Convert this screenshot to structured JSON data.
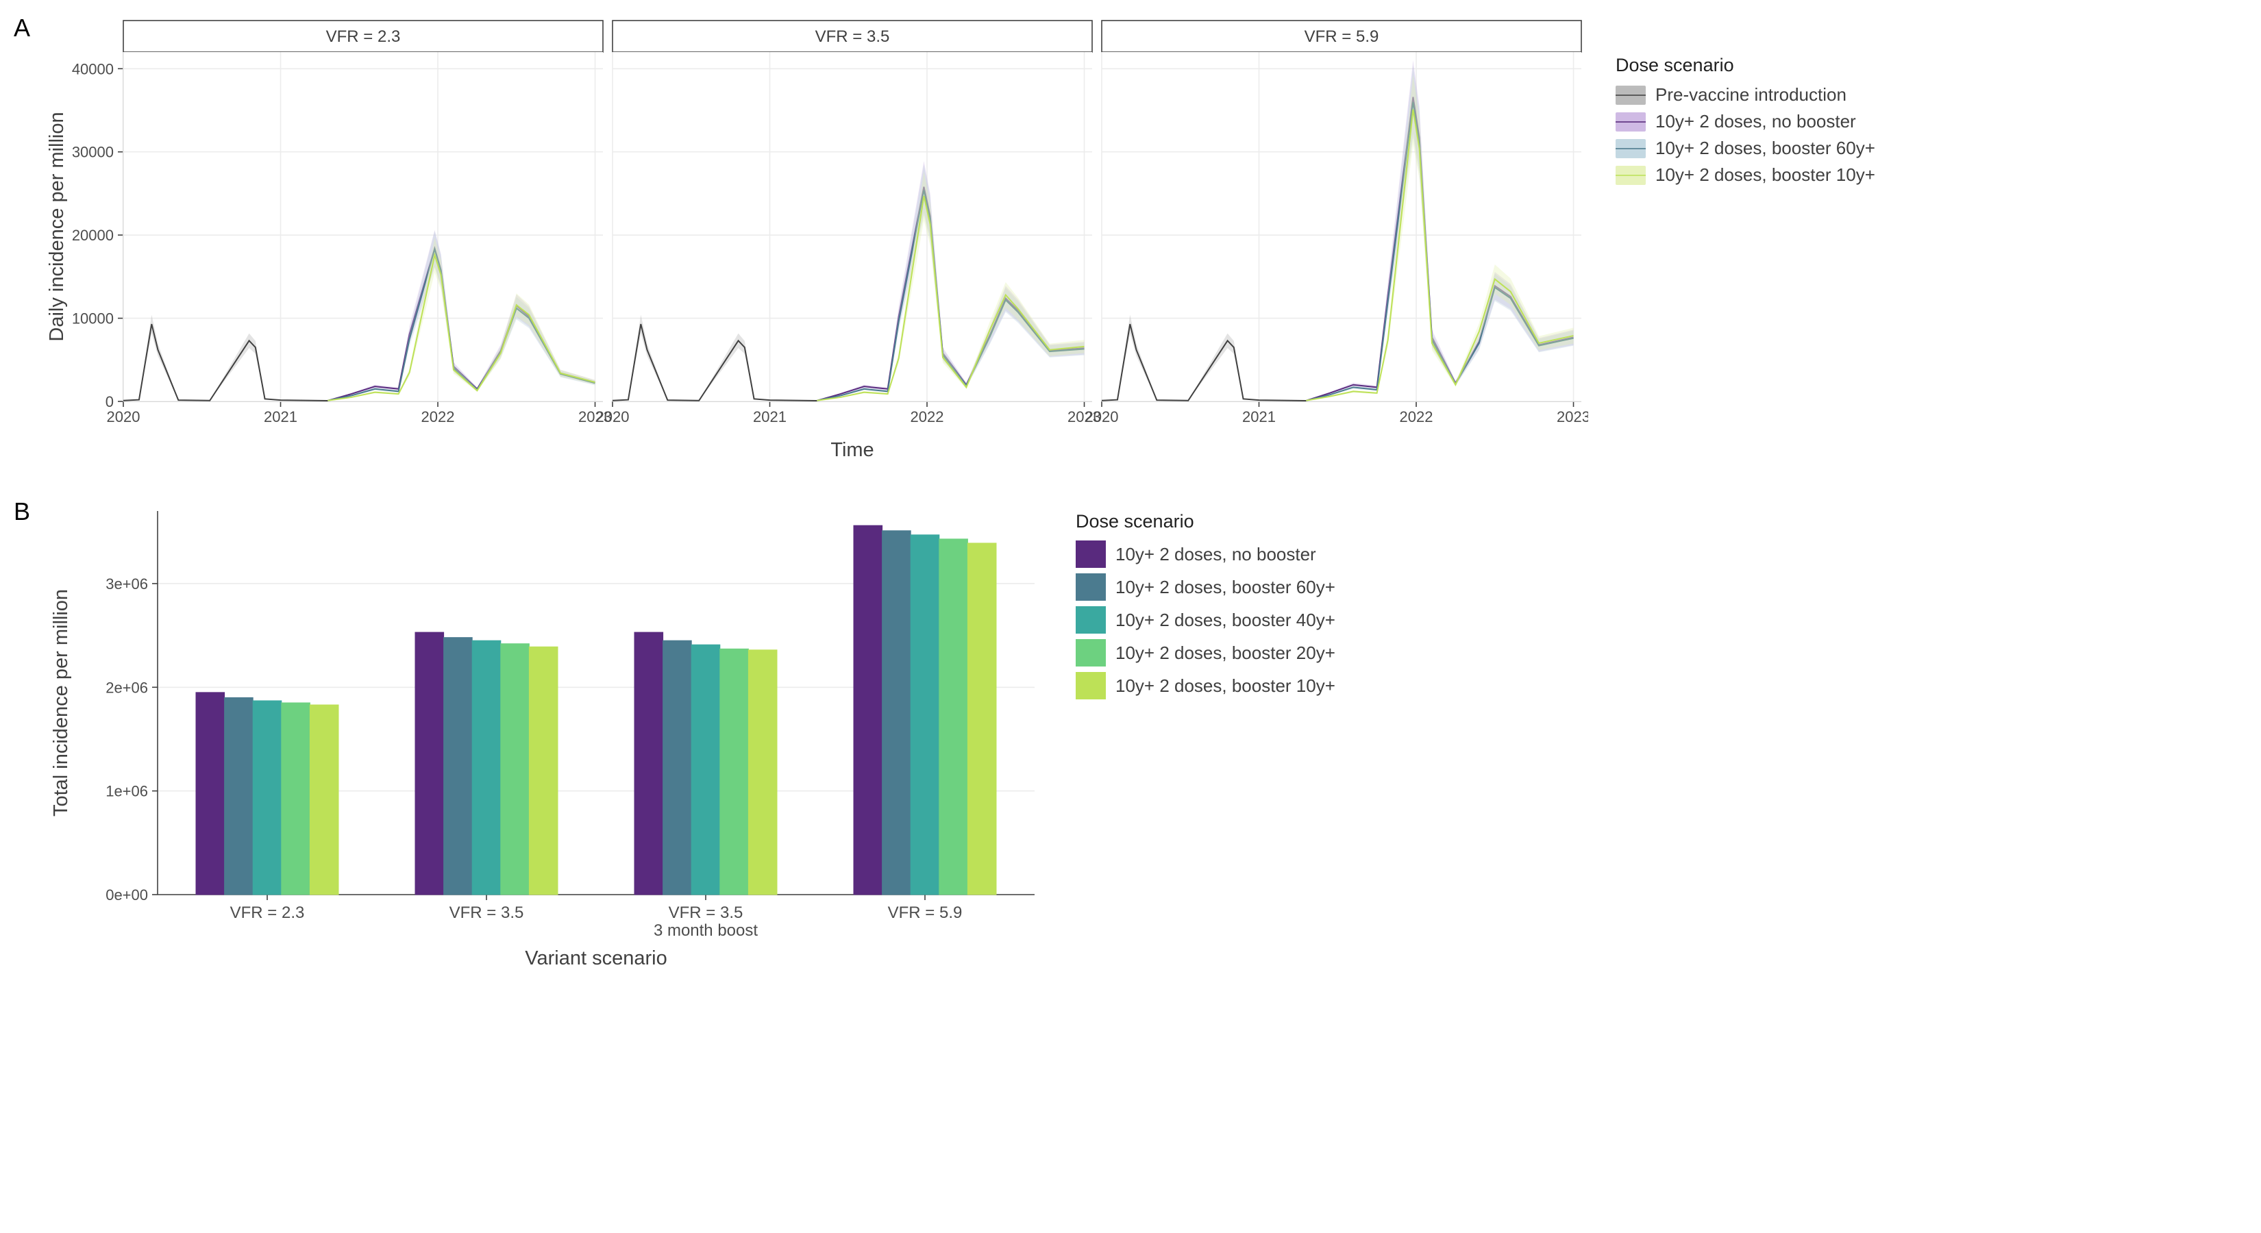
{
  "palette": {
    "prevax": "#404040",
    "prevax_fill": "#b0b0b0",
    "nobooster": "#592a7e",
    "nobooster_fill": "#c7aee0",
    "boost60": "#4b7b8f",
    "boost60_fill": "#b9d2dd",
    "boost40": "#3aa9a0",
    "boost20": "#6dd180",
    "boost10": "#bde157",
    "boost10_fill": "#e3f0b0",
    "grid": "#ececec",
    "axis": "#404040",
    "bg": "#ffffff"
  },
  "panelA": {
    "label": "A",
    "ylabel": "Daily incidence per million",
    "xlabel": "Time",
    "yticks": [
      0,
      10000,
      20000,
      30000,
      40000
    ],
    "xticks": [
      2020,
      2021,
      2022,
      2023
    ],
    "ylim": [
      0,
      42000
    ],
    "xlim": [
      2020,
      2023.05
    ],
    "axis_fontsize": 22,
    "title_fontsize": 29,
    "facets": [
      {
        "title": "VFR = 2.3",
        "series": {
          "prevax": [
            [
              2020.0,
              100
            ],
            [
              2020.1,
              200
            ],
            [
              2020.18,
              9300
            ],
            [
              2020.22,
              6200
            ],
            [
              2020.35,
              150
            ],
            [
              2020.55,
              100
            ],
            [
              2020.8,
              7300
            ],
            [
              2020.84,
              6500
            ],
            [
              2020.9,
              300
            ],
            [
              2021.0,
              150
            ],
            [
              2021.3,
              80
            ]
          ],
          "nobooster": [
            [
              2021.3,
              100
            ],
            [
              2021.45,
              900
            ],
            [
              2021.6,
              1800
            ],
            [
              2021.75,
              1500
            ],
            [
              2021.82,
              8100
            ],
            [
              2021.98,
              18400
            ],
            [
              2022.02,
              15800
            ],
            [
              2022.1,
              4200
            ],
            [
              2022.25,
              1500
            ],
            [
              2022.4,
              6100
            ],
            [
              2022.5,
              11500
            ],
            [
              2022.58,
              10200
            ],
            [
              2022.78,
              3400
            ],
            [
              2023.0,
              2300
            ]
          ],
          "boost60": [
            [
              2021.3,
              100
            ],
            [
              2021.45,
              700
            ],
            [
              2021.6,
              1500
            ],
            [
              2021.75,
              1200
            ],
            [
              2021.82,
              7500
            ],
            [
              2021.98,
              18300
            ],
            [
              2022.02,
              15700
            ],
            [
              2022.1,
              4000
            ],
            [
              2022.25,
              1400
            ],
            [
              2022.4,
              5900
            ],
            [
              2022.5,
              11200
            ],
            [
              2022.58,
              10000
            ],
            [
              2022.78,
              3300
            ],
            [
              2023.0,
              2200
            ]
          ],
          "boost10": [
            [
              2021.3,
              100
            ],
            [
              2021.45,
              500
            ],
            [
              2021.6,
              1100
            ],
            [
              2021.75,
              900
            ],
            [
              2021.82,
              3500
            ],
            [
              2021.98,
              17600
            ],
            [
              2022.02,
              15200
            ],
            [
              2022.1,
              3800
            ],
            [
              2022.25,
              1300
            ],
            [
              2022.4,
              5800
            ],
            [
              2022.5,
              11600
            ],
            [
              2022.58,
              10400
            ],
            [
              2022.78,
              3400
            ],
            [
              2023.0,
              2300
            ]
          ]
        }
      },
      {
        "title": "VFR = 3.5",
        "series": {
          "prevax": [
            [
              2020.0,
              100
            ],
            [
              2020.1,
              200
            ],
            [
              2020.18,
              9300
            ],
            [
              2020.22,
              6200
            ],
            [
              2020.35,
              150
            ],
            [
              2020.55,
              100
            ],
            [
              2020.8,
              7300
            ],
            [
              2020.84,
              6500
            ],
            [
              2020.9,
              300
            ],
            [
              2021.0,
              150
            ],
            [
              2021.3,
              80
            ]
          ],
          "nobooster": [
            [
              2021.3,
              100
            ],
            [
              2021.45,
              900
            ],
            [
              2021.6,
              1800
            ],
            [
              2021.75,
              1500
            ],
            [
              2021.82,
              10200
            ],
            [
              2021.98,
              25800
            ],
            [
              2022.02,
              22300
            ],
            [
              2022.1,
              5800
            ],
            [
              2022.25,
              2000
            ],
            [
              2022.4,
              8000
            ],
            [
              2022.5,
              12400
            ],
            [
              2022.58,
              10900
            ],
            [
              2022.78,
              6100
            ],
            [
              2023.0,
              6400
            ]
          ],
          "boost60": [
            [
              2021.3,
              100
            ],
            [
              2021.45,
              700
            ],
            [
              2021.6,
              1500
            ],
            [
              2021.75,
              1200
            ],
            [
              2021.82,
              9600
            ],
            [
              2021.98,
              25400
            ],
            [
              2022.02,
              22000
            ],
            [
              2022.1,
              5600
            ],
            [
              2022.25,
              1900
            ],
            [
              2022.4,
              7800
            ],
            [
              2022.5,
              12200
            ],
            [
              2022.58,
              10700
            ],
            [
              2022.78,
              6000
            ],
            [
              2023.0,
              6300
            ]
          ],
          "boost10": [
            [
              2021.3,
              100
            ],
            [
              2021.45,
              500
            ],
            [
              2021.6,
              1100
            ],
            [
              2021.75,
              900
            ],
            [
              2021.82,
              5200
            ],
            [
              2021.98,
              24700
            ],
            [
              2022.02,
              21300
            ],
            [
              2022.1,
              5300
            ],
            [
              2022.25,
              1700
            ],
            [
              2022.4,
              8600
            ],
            [
              2022.5,
              12800
            ],
            [
              2022.58,
              11100
            ],
            [
              2022.78,
              6200
            ],
            [
              2023.0,
              6600
            ]
          ]
        }
      },
      {
        "title": "VFR = 5.9",
        "series": {
          "prevax": [
            [
              2020.0,
              100
            ],
            [
              2020.1,
              200
            ],
            [
              2020.18,
              9300
            ],
            [
              2020.22,
              6200
            ],
            [
              2020.35,
              150
            ],
            [
              2020.55,
              100
            ],
            [
              2020.8,
              7300
            ],
            [
              2020.84,
              6500
            ],
            [
              2020.9,
              300
            ],
            [
              2021.0,
              150
            ],
            [
              2021.3,
              80
            ]
          ],
          "nobooster": [
            [
              2021.3,
              100
            ],
            [
              2021.45,
              1000
            ],
            [
              2021.6,
              2000
            ],
            [
              2021.75,
              1700
            ],
            [
              2021.82,
              12800
            ],
            [
              2021.98,
              36600
            ],
            [
              2022.02,
              31700
            ],
            [
              2022.1,
              7700
            ],
            [
              2022.25,
              2200
            ],
            [
              2022.4,
              7200
            ],
            [
              2022.5,
              13900
            ],
            [
              2022.6,
              12600
            ],
            [
              2022.78,
              6800
            ],
            [
              2023.0,
              7700
            ]
          ],
          "boost60": [
            [
              2021.3,
              100
            ],
            [
              2021.45,
              800
            ],
            [
              2021.6,
              1700
            ],
            [
              2021.75,
              1400
            ],
            [
              2021.82,
              12000
            ],
            [
              2021.98,
              36000
            ],
            [
              2022.02,
              31100
            ],
            [
              2022.1,
              7400
            ],
            [
              2022.25,
              2100
            ],
            [
              2022.4,
              7000
            ],
            [
              2022.5,
              13700
            ],
            [
              2022.6,
              12400
            ],
            [
              2022.78,
              6700
            ],
            [
              2023.0,
              7600
            ]
          ],
          "boost10": [
            [
              2021.3,
              100
            ],
            [
              2021.45,
              600
            ],
            [
              2021.6,
              1200
            ],
            [
              2021.75,
              1000
            ],
            [
              2021.82,
              7400
            ],
            [
              2021.98,
              35100
            ],
            [
              2022.02,
              30400
            ],
            [
              2022.1,
              7000
            ],
            [
              2022.25,
              2000
            ],
            [
              2022.4,
              8400
            ],
            [
              2022.5,
              14700
            ],
            [
              2022.6,
              13200
            ],
            [
              2022.78,
              7000
            ],
            [
              2023.0,
              7900
            ]
          ]
        }
      }
    ],
    "legend": {
      "title": "Dose scenario",
      "items": [
        {
          "key": "prevax",
          "label": "Pre-vaccine introduction"
        },
        {
          "key": "nobooster",
          "label": "10y+ 2 doses, no booster"
        },
        {
          "key": "boost60",
          "label": "10y+ 2 doses, booster 60y+"
        },
        {
          "key": "boost10",
          "label": "10y+ 2 doses, booster 10y+"
        }
      ]
    }
  },
  "panelB": {
    "label": "B",
    "ylabel": "Total incidence per million",
    "xlabel": "Variant scenario",
    "yticks": [
      0,
      1000000,
      2000000,
      3000000
    ],
    "ytick_labels": [
      "0e+00",
      "1e+06",
      "2e+06",
      "3e+06"
    ],
    "ylim": [
      0,
      3700000
    ],
    "bar_gap": 0,
    "group_gap": 0.35,
    "categories": [
      {
        "label_lines": [
          "VFR = 2.3"
        ],
        "values": [
          1950000,
          1900000,
          1870000,
          1850000,
          1830000
        ]
      },
      {
        "label_lines": [
          "VFR = 3.5"
        ],
        "values": [
          2530000,
          2480000,
          2450000,
          2420000,
          2390000
        ]
      },
      {
        "label_lines": [
          "VFR = 3.5",
          "3 month boost"
        ],
        "values": [
          2530000,
          2450000,
          2410000,
          2370000,
          2360000
        ]
      },
      {
        "label_lines": [
          "VFR = 5.9"
        ],
        "values": [
          3560000,
          3510000,
          3470000,
          3430000,
          3390000
        ]
      }
    ],
    "series_keys": [
      "nobooster",
      "boost60",
      "boost40",
      "boost20",
      "boost10"
    ],
    "legend": {
      "title": "Dose scenario",
      "items": [
        {
          "key": "nobooster",
          "label": "10y+ 2 doses, no booster"
        },
        {
          "key": "boost60",
          "label": "10y+ 2 doses, booster 60y+"
        },
        {
          "key": "boost40",
          "label": "10y+ 2 doses, booster 40y+"
        },
        {
          "key": "boost20",
          "label": "10y+ 2 doses, booster 20y+"
        },
        {
          "key": "boost10",
          "label": "10y+ 2 doses, booster 10y+"
        }
      ]
    }
  }
}
